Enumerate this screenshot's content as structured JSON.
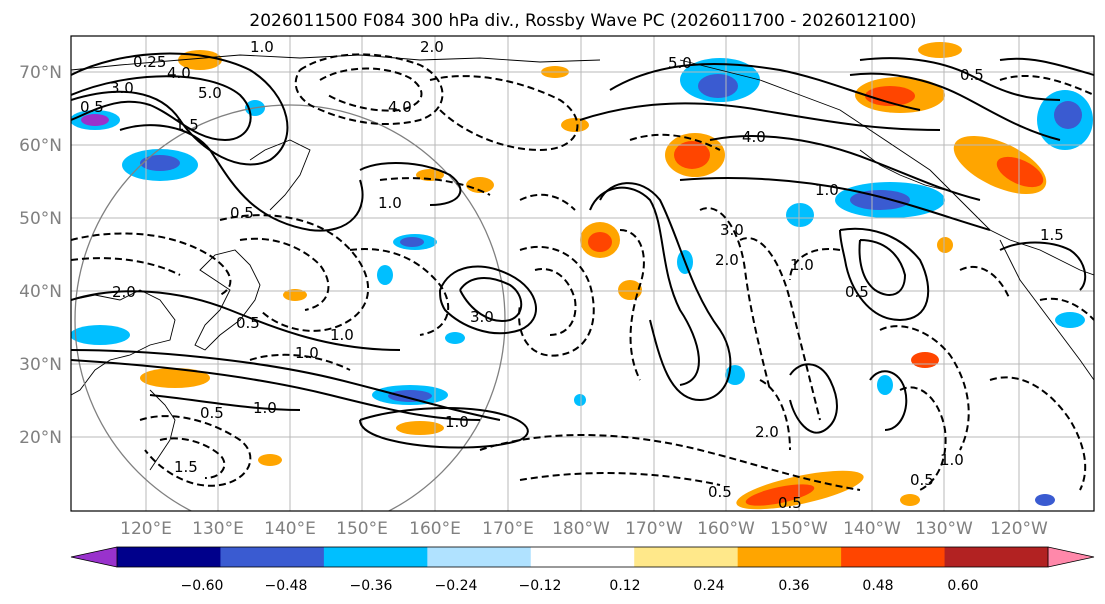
{
  "title": "2026011500 F084 300 hPa div., Rossby Wave PC (2026011700 - 2026012100)",
  "latitude_labels": [
    "70°N",
    "60°N",
    "50°N",
    "40°N",
    "30°N",
    "20°N"
  ],
  "longitude_labels": [
    "120°E",
    "130°E",
    "140°E",
    "150°E",
    "160°E",
    "170°E",
    "180°W",
    "170°W",
    "160°W",
    "150°W",
    "140°W",
    "130°W",
    "120°W"
  ],
  "colorbar": {
    "ticks": [
      "−0.60",
      "−0.48",
      "−0.36",
      "−0.24",
      "−0.12",
      "0.12",
      "0.24",
      "0.36",
      "0.48",
      "0.60"
    ],
    "colors": [
      "#9932cc",
      "#00008b",
      "#3a5bd1",
      "#00bfff",
      "#b0e2ff",
      "#ffffff",
      "#ffe88a",
      "#ffa500",
      "#ff4500",
      "#b22222",
      "#ff88aa"
    ]
  },
  "contour_labels": [
    "0.25",
    "4.0",
    "5.0",
    "3.0",
    "1.5",
    "1.0",
    "0.5",
    "2.0",
    "4.0",
    "1.0",
    "0.5",
    "3.0",
    "1.0",
    "1.0",
    "2.0",
    "0.5",
    "1.0",
    "0.5",
    "1.0",
    "1.5",
    "5.0",
    "4.0",
    "1.0",
    "2.0",
    "1.0",
    "0.5",
    "2.0",
    "0.5",
    "1.0",
    "0.5",
    "0.5",
    "1.5",
    "0.5",
    "3.0"
  ]
}
